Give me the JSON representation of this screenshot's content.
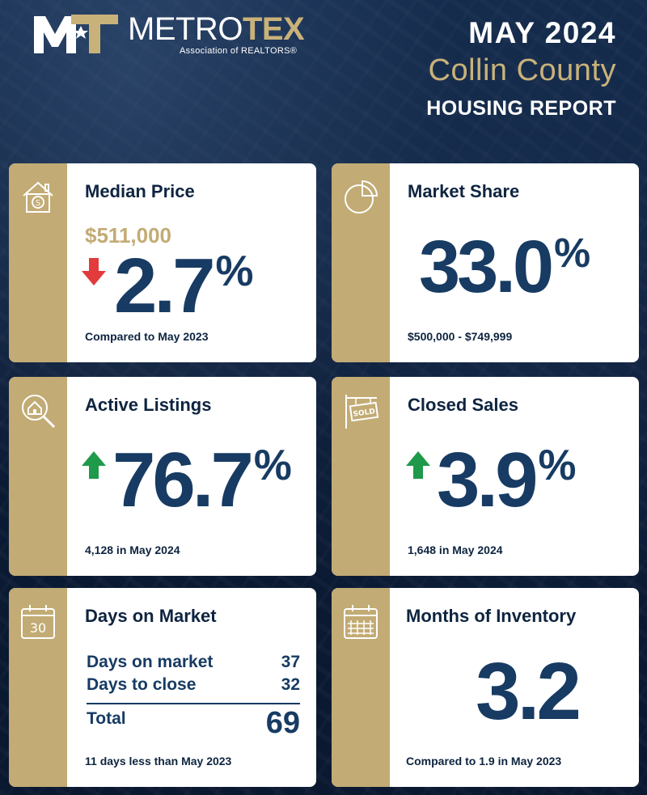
{
  "header": {
    "logo_word_metro": "METRO",
    "logo_word_tex": "TEX",
    "logo_subtitle": "Association of REALTORS®",
    "month": "MAY 2024",
    "county": "Collin County",
    "report": "HOUSING REPORT"
  },
  "colors": {
    "navy": "#0b1a33",
    "gold": "#c2ab74",
    "value_blue": "#173b63",
    "arrow_up": "#1f9a4a",
    "arrow_down": "#e23b3b"
  },
  "cards": {
    "median_price": {
      "icon": "house-dollar-icon",
      "title": "Median Price",
      "price": "$511,000",
      "direction": "down",
      "value": "2.7",
      "unit": "%",
      "footnote": "Compared to May 2023"
    },
    "market_share": {
      "icon": "pie-chart-icon",
      "title": "Market Share",
      "value": "33.0",
      "unit": "%",
      "footnote": "$500,000 - $749,999"
    },
    "active_listings": {
      "icon": "house-search-icon",
      "title": "Active Listings",
      "direction": "up",
      "value": "76.7",
      "unit": "%",
      "footnote": "4,128 in May 2024"
    },
    "closed_sales": {
      "icon": "sold-sign-icon",
      "title": "Closed Sales",
      "direction": "up",
      "value": "3.9",
      "unit": "%",
      "footnote": "1,648 in May 2024"
    },
    "days_on_market": {
      "icon": "calendar-30-icon",
      "icon_text": "30",
      "title": "Days on Market",
      "rows": [
        {
          "label": "Days on market",
          "value": "37"
        },
        {
          "label": "Days to close",
          "value": "32"
        }
      ],
      "total_label": "Total",
      "total_value": "69",
      "footnote": "11 days less than May 2023"
    },
    "months_inventory": {
      "icon": "calendar-grid-icon",
      "title": "Months of Inventory",
      "value": "3.2",
      "footnote": "Compared to 1.9 in May 2023"
    }
  }
}
